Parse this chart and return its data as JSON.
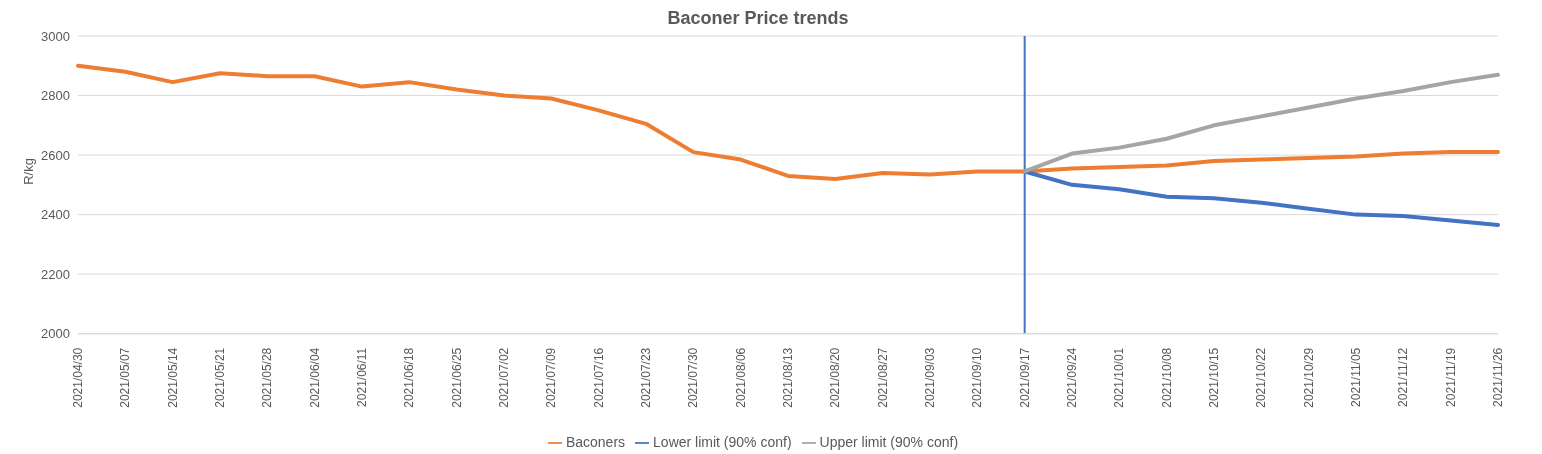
{
  "chart_data": {
    "type": "line",
    "title": "Baconer Price trends",
    "ylabel": "R/kg",
    "categories": [
      "2021/04/30",
      "2021/05/07",
      "2021/05/14",
      "2021/05/21",
      "2021/05/28",
      "2021/06/04",
      "2021/06/11",
      "2021/06/18",
      "2021/06/25",
      "2021/07/02",
      "2021/07/09",
      "2021/07/16",
      "2021/07/23",
      "2021/07/30",
      "2021/08/06",
      "2021/08/13",
      "2021/08/20",
      "2021/08/27",
      "2021/09/03",
      "2021/09/10",
      "2021/09/17",
      "2021/09/24",
      "2021/10/01",
      "2021/10/08",
      "2021/10/15",
      "2021/10/22",
      "2021/10/29",
      "2021/11/05",
      "2021/11/12",
      "2021/11/19",
      "2021/11/26"
    ],
    "series": [
      {
        "name": "Baconers",
        "color": "#ed7d31",
        "values": [
          2900,
          2880,
          2845,
          2875,
          2865,
          2865,
          2830,
          2845,
          2820,
          2800,
          2790,
          2750,
          2705,
          2610,
          2585,
          2530,
          2520,
          2540,
          2535,
          2545,
          2545,
          2555,
          2560,
          2565,
          2580,
          2585,
          2590,
          2595,
          2605,
          2610,
          2610
        ]
      },
      {
        "name": "Lower limit (90% conf)",
        "color": "#4472c4",
        "values": [
          null,
          null,
          null,
          null,
          null,
          null,
          null,
          null,
          null,
          null,
          null,
          null,
          null,
          null,
          null,
          null,
          null,
          null,
          null,
          null,
          2545,
          2500,
          2485,
          2460,
          2455,
          2440,
          2420,
          2400,
          2395,
          2380,
          2365
        ]
      },
      {
        "name": "Upper limit (90% conf)",
        "color": "#a5a5a5",
        "values": [
          null,
          null,
          null,
          null,
          null,
          null,
          null,
          null,
          null,
          null,
          null,
          null,
          null,
          null,
          null,
          null,
          null,
          null,
          null,
          null,
          2545,
          2605,
          2625,
          2655,
          2700,
          2730,
          2760,
          2790,
          2815,
          2845,
          2870
        ]
      }
    ],
    "ylim": [
      2000,
      3000
    ],
    "yticks": [
      2000,
      2200,
      2400,
      2600,
      2800,
      3000
    ],
    "grid": "y",
    "legend": "bottom",
    "marker": "none",
    "line_style": "solid",
    "ref_lines": [
      {
        "axis": "x",
        "value": "2021/09/17",
        "color": "#4472c4"
      }
    ]
  }
}
